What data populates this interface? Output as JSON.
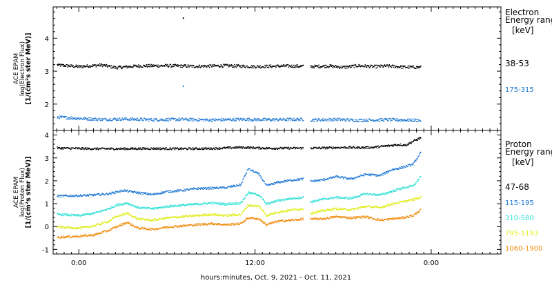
{
  "footer": {
    "xlabel": "hours:minutes, Oct. 9, 2021 - Oct. 11, 2021"
  },
  "chart_data": [
    {
      "type": "scatter",
      "panel": "top",
      "ylabel": [
        "ACE EPAM",
        "log(Electron Flux)",
        "[1/(cm²s ster MeV)]"
      ],
      "ylim": [
        1.2,
        4.95
      ],
      "yticks": [
        2,
        3,
        4
      ],
      "xlim": [
        -3.5,
        57.5
      ],
      "xticks": [
        0,
        24,
        48
      ],
      "xticklabels": [
        "0:00",
        "12:00",
        "0:00"
      ],
      "legend": {
        "title": [
          "Electron",
          "Energy ranges",
          "[keV]"
        ],
        "position": "right"
      },
      "series": [
        {
          "name": "38-53",
          "color": "#000000",
          "segments": [
            {
              "x": [
                -3,
                0,
                3,
                5,
                8,
                12,
                16,
                20,
                24,
                28,
                30.5
              ],
              "y": [
                3.2,
                3.15,
                3.2,
                3.12,
                3.17,
                3.18,
                3.16,
                3.18,
                3.15,
                3.17,
                3.16
              ]
            },
            {
              "x": [
                31.5,
                34,
                36,
                38,
                40,
                42,
                44,
                46.5
              ],
              "y": [
                3.15,
                3.17,
                3.13,
                3.18,
                3.15,
                3.17,
                3.14,
                3.13
              ]
            }
          ],
          "outliers": [
            {
              "x": 14.2,
              "y": 4.62
            }
          ]
        },
        {
          "name": "175-315",
          "color": "#1f78d4",
          "segments": [
            {
              "x": [
                -3,
                0,
                3,
                6,
                10,
                14,
                18,
                22,
                26,
                30.5
              ],
              "y": [
                1.62,
                1.58,
                1.55,
                1.56,
                1.54,
                1.55,
                1.53,
                1.55,
                1.54,
                1.55
              ]
            },
            {
              "x": [
                31.5,
                35,
                38,
                42,
                46.5
              ],
              "y": [
                1.53,
                1.55,
                1.52,
                1.54,
                1.52
              ]
            }
          ],
          "outliers": [
            {
              "x": 14.2,
              "y": 2.55
            }
          ]
        }
      ]
    },
    {
      "type": "scatter",
      "panel": "bottom",
      "ylabel": [
        "ACE EPAM",
        "log(Proton Flux)",
        "[1/(cm²s ster MeV)]"
      ],
      "ylim": [
        -1.2,
        4.2
      ],
      "yticks": [
        -1,
        0,
        1,
        2,
        3,
        4
      ],
      "xlim": [
        -3.5,
        57.5
      ],
      "xticks": [
        0,
        24,
        48
      ],
      "xticklabels": [
        "0:00",
        "12:00",
        "0:00"
      ],
      "legend": {
        "title": [
          "Proton",
          "Energy ranges",
          "[keV]"
        ],
        "position": "right"
      },
      "series": [
        {
          "name": "47-68",
          "color": "#000000",
          "segments": [
            {
              "x": [
                -3,
                2,
                6,
                10,
                14,
                18,
                22,
                26,
                30.5
              ],
              "y": [
                3.45,
                3.42,
                3.42,
                3.43,
                3.42,
                3.43,
                3.48,
                3.44,
                3.45
              ]
            },
            {
              "x": [
                31.5,
                34,
                36,
                38,
                40,
                42,
                43.5,
                44.5,
                45.5,
                46.5
              ],
              "y": [
                3.45,
                3.46,
                3.48,
                3.47,
                3.48,
                3.55,
                3.6,
                3.58,
                3.75,
                3.9
              ]
            }
          ],
          "outliers": []
        },
        {
          "name": "115-195",
          "color": "#1f78d4",
          "segments": [
            {
              "x": [
                -3,
                1,
                4,
                6,
                8,
                10,
                12,
                14,
                16,
                18,
                20,
                22,
                23,
                24.5,
                25.5,
                27,
                29,
                30.5
              ],
              "y": [
                1.35,
                1.38,
                1.45,
                1.6,
                1.5,
                1.42,
                1.55,
                1.6,
                1.68,
                1.7,
                1.72,
                1.85,
                2.55,
                2.3,
                1.8,
                1.95,
                2.05,
                2.1
              ]
            },
            {
              "x": [
                31.5,
                33,
                35,
                37,
                39,
                41,
                42.5,
                44,
                45.5,
                46.5
              ],
              "y": [
                2.0,
                2.05,
                2.2,
                2.1,
                2.3,
                2.25,
                2.5,
                2.6,
                2.75,
                3.25
              ]
            }
          ],
          "outliers": []
        },
        {
          "name": "310-580",
          "color": "#2ee0d6",
          "segments": [
            {
              "x": [
                -3,
                0,
                2,
                4,
                5,
                6.5,
                8,
                10,
                12,
                14,
                16,
                18,
                20,
                22,
                23,
                24.5,
                25.5,
                27,
                29,
                30.5
              ],
              "y": [
                0.55,
                0.5,
                0.6,
                0.8,
                0.95,
                1.05,
                0.85,
                0.8,
                0.9,
                0.95,
                1.0,
                1.05,
                1.0,
                1.05,
                1.5,
                1.4,
                1.0,
                1.15,
                1.25,
                1.3
              ]
            },
            {
              "x": [
                31.5,
                33,
                35,
                37,
                39,
                41,
                42.5,
                44,
                45.5,
                46.5
              ],
              "y": [
                1.1,
                1.2,
                1.3,
                1.25,
                1.45,
                1.4,
                1.55,
                1.7,
                1.8,
                2.2
              ]
            }
          ],
          "outliers": []
        },
        {
          "name": "795-1193",
          "color": "#e0ec18",
          "segments": [
            {
              "x": [
                -3,
                0,
                2,
                4,
                5,
                6.5,
                8,
                10,
                12,
                14,
                16,
                18,
                20,
                22,
                23,
                24.5,
                25.5,
                27,
                29,
                30.5
              ],
              "y": [
                0.0,
                -0.05,
                0.05,
                0.25,
                0.45,
                0.6,
                0.35,
                0.3,
                0.4,
                0.45,
                0.5,
                0.55,
                0.5,
                0.55,
                0.95,
                0.9,
                0.5,
                0.65,
                0.75,
                0.8
              ]
            },
            {
              "x": [
                31.5,
                33,
                35,
                37,
                39,
                41,
                42.5,
                44,
                45.5,
                46.5
              ],
              "y": [
                0.6,
                0.7,
                0.8,
                0.75,
                0.9,
                0.85,
                1.0,
                1.1,
                1.2,
                1.3
              ]
            }
          ],
          "outliers": []
        },
        {
          "name": "1060-1900",
          "color": "#f08a0a",
          "segments": [
            {
              "x": [
                -3,
                0,
                2,
                4,
                5,
                6.5,
                8,
                10,
                12,
                14,
                16,
                18,
                20,
                22,
                23,
                24.5,
                25.5,
                27,
                29,
                30.5
              ],
              "y": [
                -0.45,
                -0.4,
                -0.35,
                -0.15,
                0.0,
                0.2,
                -0.05,
                -0.1,
                0.0,
                0.05,
                0.1,
                0.15,
                0.1,
                0.15,
                0.4,
                0.35,
                0.1,
                0.25,
                0.3,
                0.35
              ]
            },
            {
              "x": [
                31.5,
                33,
                35,
                37,
                39,
                41,
                42.5,
                44,
                45.5,
                46.5
              ],
              "y": [
                0.35,
                0.35,
                0.45,
                0.4,
                0.45,
                0.3,
                0.35,
                0.4,
                0.5,
                0.75
              ]
            }
          ],
          "outliers": []
        }
      ]
    }
  ]
}
